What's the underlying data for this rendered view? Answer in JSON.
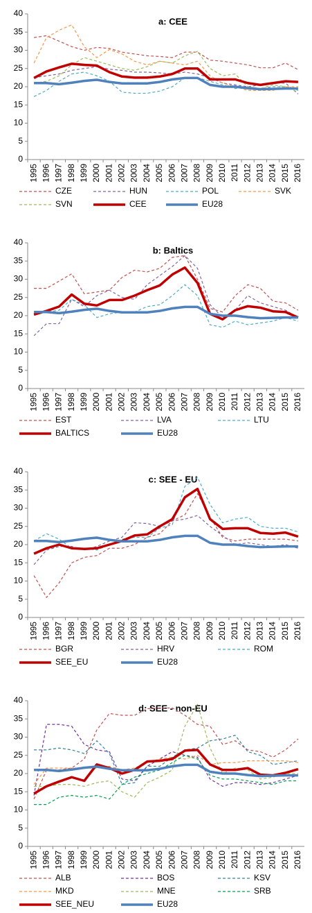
{
  "chart_data": [
    {
      "type": "line",
      "title": "a: CEE",
      "categories": [
        "1995",
        "1996",
        "1997",
        "1998",
        "1999",
        "2000",
        "2001",
        "2002",
        "2003",
        "2004",
        "2005",
        "2006",
        "2007",
        "2008",
        "2009",
        "2010",
        "2011",
        "2012",
        "2013",
        "2014",
        "2015",
        "2016"
      ],
      "ylim": [
        0,
        40
      ],
      "yticks": [
        0,
        5,
        10,
        15,
        20,
        25,
        30,
        35,
        40
      ],
      "series": [
        {
          "name": "CZE",
          "color": "#c0504d",
          "style": "dashed",
          "values": [
            33.5,
            34,
            32.5,
            31,
            30,
            30.8,
            30.5,
            29.5,
            29,
            28.5,
            28.3,
            28,
            29.5,
            29.5,
            27.3,
            27,
            26.5,
            26,
            25.2,
            25.2,
            26.5,
            24.7
          ]
        },
        {
          "name": "HUN",
          "color": "#8064a2",
          "style": "dashed",
          "values": [
            22.5,
            23,
            23.5,
            24.5,
            25,
            25.5,
            24.8,
            24.5,
            24,
            24,
            23.8,
            23.5,
            24,
            23.5,
            22.5,
            21,
            20.5,
            20,
            20.5,
            21,
            21,
            18
          ]
        },
        {
          "name": "POL",
          "color": "#4bacc6",
          "style": "dashed",
          "values": [
            17.3,
            19,
            21.5,
            23.5,
            24,
            23,
            21.5,
            18.5,
            18.2,
            18.2,
            18.8,
            20,
            22.5,
            22.5,
            21.5,
            20.5,
            19.5,
            20,
            19.5,
            20,
            20,
            19
          ]
        },
        {
          "name": "SVK",
          "color": "#f79646",
          "style": "dashed",
          "values": [
            26.5,
            33.5,
            35.5,
            37,
            31,
            28,
            30.2,
            29,
            27,
            26,
            27,
            26.5,
            26,
            27,
            23,
            21,
            20,
            19,
            19,
            19,
            20,
            20
          ]
        },
        {
          "name": "SVN",
          "color": "#9bbb59",
          "style": "dashed",
          "values": [
            21,
            21.5,
            23,
            26,
            28,
            27,
            26,
            25,
            24.5,
            25.5,
            27,
            26.5,
            28.5,
            29.7,
            25,
            23,
            23.5,
            20,
            19.5,
            20.5,
            20,
            18.5
          ]
        },
        {
          "name": "CEE",
          "color": "#c00000",
          "style": "solid",
          "values": [
            22.4,
            24.2,
            25.3,
            26.3,
            26,
            25.8,
            24,
            22.8,
            22.5,
            22.5,
            22.8,
            23.5,
            25,
            25,
            22,
            22,
            22,
            21,
            20.5,
            21,
            21.5,
            21.3
          ]
        },
        {
          "name": "EU28",
          "color": "#4f81bd",
          "style": "solid",
          "values": [
            21,
            21,
            20.7,
            21.1,
            21.6,
            21.9,
            21.3,
            20.9,
            20.9,
            20.9,
            21.3,
            22,
            22.4,
            22.4,
            20.5,
            20,
            20,
            19.6,
            19.3,
            19.4,
            19.5,
            19.5
          ]
        }
      ]
    },
    {
      "type": "line",
      "title": "b: Baltics",
      "categories": [
        "1995",
        "1996",
        "1997",
        "1998",
        "1999",
        "2000",
        "2001",
        "2002",
        "2003",
        "2004",
        "2005",
        "2006",
        "2007",
        "2008",
        "2009",
        "2010",
        "2011",
        "2012",
        "2013",
        "2014",
        "2015",
        "2016"
      ],
      "ylim": [
        0,
        40
      ],
      "yticks": [
        0,
        5,
        10,
        15,
        20,
        25,
        30,
        35,
        40
      ],
      "series": [
        {
          "name": "EST",
          "color": "#c0504d",
          "style": "dashed",
          "values": [
            27.5,
            27.5,
            29.5,
            31.5,
            26,
            26.5,
            27,
            30.5,
            32.5,
            32,
            33,
            36,
            36.5,
            30,
            22,
            21,
            25.5,
            28.5,
            27.5,
            24,
            23.5,
            21.5
          ]
        },
        {
          "name": "LVA",
          "color": "#8064a2",
          "style": "dashed",
          "values": [
            14.5,
            17.8,
            17.8,
            24.5,
            22.5,
            25.5,
            27,
            25,
            24.5,
            28.5,
            31,
            33.5,
            36.5,
            33,
            23,
            19.5,
            21.5,
            25.5,
            23.5,
            22.5,
            21.5,
            19.5
          ]
        },
        {
          "name": "LTU",
          "color": "#4bacc6",
          "style": "dashed",
          "values": [
            21,
            21,
            21.5,
            24.5,
            23,
            19.5,
            20.5,
            21,
            21,
            22.5,
            23,
            25.5,
            28.5,
            25.5,
            17.5,
            16.8,
            18.5,
            17.5,
            18,
            18.5,
            19.5,
            18.5
          ]
        },
        {
          "name": "BALTICS",
          "color": "#c00000",
          "style": "solid",
          "values": [
            20.3,
            21.3,
            22.5,
            25.8,
            23.3,
            22.8,
            24.3,
            24.3,
            25.5,
            27,
            28.3,
            31.3,
            33.2,
            29,
            20.5,
            19,
            21.5,
            22.6,
            22.2,
            21.2,
            21,
            19.5
          ]
        },
        {
          "name": "EU28",
          "color": "#4f81bd",
          "style": "solid",
          "values": [
            21,
            21,
            20.7,
            21.1,
            21.6,
            21.9,
            21.3,
            20.9,
            20.9,
            20.9,
            21.3,
            22,
            22.4,
            22.4,
            20.5,
            20,
            20,
            19.6,
            19.3,
            19.4,
            19.5,
            19.5
          ]
        }
      ]
    },
    {
      "type": "line",
      "title": "c: SEE - EU",
      "categories": [
        "1995",
        "1996",
        "1997",
        "1998",
        "1999",
        "2000",
        "2001",
        "2002",
        "2003",
        "2004",
        "2005",
        "2006",
        "2007",
        "2008",
        "2009",
        "2010",
        "2011",
        "2012",
        "2013",
        "2014",
        "2015",
        "2016"
      ],
      "ylim": [
        0,
        40
      ],
      "yticks": [
        0,
        5,
        10,
        15,
        20,
        25,
        30,
        35,
        40
      ],
      "series": [
        {
          "name": "BGR",
          "color": "#c0504d",
          "style": "dashed",
          "values": [
            11.5,
            5.5,
            9.5,
            15,
            16.5,
            17,
            19,
            19,
            20,
            22,
            23,
            26.5,
            28.2,
            34,
            27.5,
            22,
            21,
            21.5,
            21.5,
            21.5,
            21.5,
            21
          ]
        },
        {
          "name": "HRV",
          "color": "#8064a2",
          "style": "dashed",
          "values": [
            14.5,
            18.5,
            19.5,
            19.5,
            18.5,
            19.5,
            21,
            22,
            26,
            25.8,
            25,
            26.5,
            27,
            28,
            25,
            22.5,
            20,
            20.5,
            20,
            19.5,
            20,
            19
          ]
        },
        {
          "name": "ROM",
          "color": "#4bacc6",
          "style": "dashed",
          "values": [
            21,
            23,
            21.5,
            19,
            19,
            18.5,
            20,
            21.5,
            22,
            22,
            24.5,
            25.5,
            36,
            38.5,
            31,
            26,
            27,
            27.5,
            25,
            24.5,
            24.5,
            23.5
          ]
        },
        {
          "name": "SEE_EU",
          "color": "#c00000",
          "style": "solid",
          "values": [
            17.5,
            19,
            20,
            19,
            18.8,
            19,
            20,
            21,
            22.5,
            22.8,
            25,
            27,
            33,
            35.3,
            27,
            24.3,
            24.5,
            24.5,
            23.2,
            23,
            23.3,
            22.2
          ]
        },
        {
          "name": "EU28",
          "color": "#4f81bd",
          "style": "solid",
          "values": [
            21,
            21,
            20.7,
            21.1,
            21.6,
            21.9,
            21.3,
            20.9,
            20.9,
            20.9,
            21.3,
            22,
            22.4,
            22.4,
            20.5,
            20,
            20,
            19.6,
            19.3,
            19.4,
            19.5,
            19.5
          ]
        }
      ]
    },
    {
      "type": "line",
      "title": "d: SEE - non-EU",
      "categories": [
        "1995",
        "1996",
        "1997",
        "1998",
        "1999",
        "2000",
        "2001",
        "2002",
        "2003",
        "2004",
        "2005",
        "2006",
        "2007",
        "2008",
        "2009",
        "2010",
        "2011",
        "2012",
        "2013",
        "2014",
        "2015",
        "2016"
      ],
      "ylim": [
        0,
        40
      ],
      "yticks": [
        0,
        5,
        10,
        15,
        20,
        25,
        30,
        35,
        40
      ],
      "series": [
        {
          "name": "ALB",
          "color": "#c0504d",
          "style": "dashed",
          "values": [
            13,
            21,
            21,
            21.5,
            24,
            32,
            36.5,
            36,
            36,
            37.8,
            38,
            38,
            36,
            33.5,
            33,
            28,
            29,
            26.5,
            26,
            24.5,
            26.5,
            29.5
          ]
        },
        {
          "name": "BOS",
          "color": "#7030a0",
          "style": "dashed",
          "values": [
            14,
            33.5,
            33.5,
            33,
            28,
            26.5,
            26,
            18.5,
            18,
            22,
            24,
            26,
            25,
            24.5,
            18.5,
            16.5,
            17.5,
            17.5,
            17,
            17.5,
            18.5,
            19.5
          ]
        },
        {
          "name": "KSV",
          "color": "#31859c",
          "style": "dashed",
          "values": [
            26.5,
            26.5,
            27,
            26.5,
            25.5,
            29,
            25.5,
            17,
            17.5,
            22,
            22,
            24.5,
            26.5,
            27,
            29,
            29.5,
            30.5,
            26,
            25,
            22.5,
            23,
            23.5
          ]
        },
        {
          "name": "MKD",
          "color": "#f79646",
          "style": "dashed",
          "values": [
            17,
            21.5,
            21.5,
            21.5,
            21.5,
            21.5,
            22,
            21,
            21.5,
            23,
            24,
            24.5,
            24,
            25,
            22.5,
            23,
            23,
            23.5,
            23.5,
            23.5,
            23.5,
            23
          ]
        },
        {
          "name": "MNE",
          "color": "#9bbb59",
          "style": "dashed",
          "values": [
            16.5,
            16.5,
            17,
            17,
            16.5,
            17.5,
            18,
            15,
            13.5,
            17.5,
            19,
            21,
            33,
            39,
            27,
            20,
            21.5,
            21,
            18.5,
            19,
            20,
            20
          ]
        },
        {
          "name": "SRB",
          "color": "#00a050",
          "style": "dashed",
          "values": [
            11.5,
            11.5,
            13.5,
            14,
            13.5,
            14,
            13,
            17,
            19,
            20,
            21,
            23,
            25,
            24,
            19.5,
            18.5,
            18.5,
            18,
            17.5,
            17,
            18,
            18
          ]
        },
        {
          "name": "SEE_NEU",
          "color": "#c00000",
          "style": "solid",
          "values": [
            14.5,
            16.5,
            17.8,
            19,
            18,
            22.5,
            21.5,
            20,
            21,
            23.3,
            23.5,
            24,
            26.3,
            26.5,
            22.5,
            21,
            21,
            21.5,
            19.7,
            19.5,
            20.2,
            21.2
          ]
        },
        {
          "name": "EU28",
          "color": "#4f81bd",
          "style": "solid",
          "values": [
            21,
            21,
            20.7,
            21.1,
            21.6,
            21.9,
            21.3,
            20.9,
            20.9,
            20.9,
            21.3,
            22,
            22.4,
            22.4,
            20.5,
            20,
            20,
            19.6,
            19.3,
            19.4,
            19.5,
            19.5
          ]
        }
      ]
    }
  ]
}
